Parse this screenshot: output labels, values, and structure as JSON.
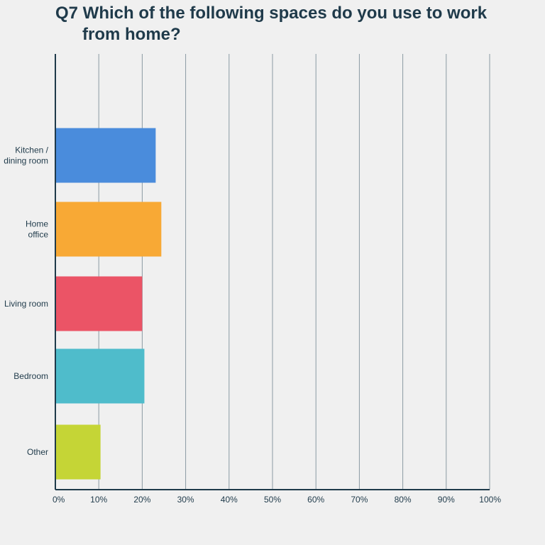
{
  "chart_data": {
    "type": "bar",
    "orientation": "horizontal",
    "title_line1": "Q7 Which of the following spaces do you use to work",
    "title_line2": "from home?",
    "categories": [
      [
        "Kitchen /",
        "dining room"
      ],
      [
        "Home",
        "office"
      ],
      [
        "Living room"
      ],
      [
        "Bedroom"
      ],
      [
        "Other"
      ]
    ],
    "values": [
      23.1,
      24.4,
      20.0,
      20.5,
      10.4
    ],
    "colors": [
      "#4a8cdc",
      "#f8a935",
      "#eb5466",
      "#4fbccb",
      "#c5d536"
    ],
    "xlim": [
      0,
      100
    ],
    "x_ticks": [
      "0%",
      "10%",
      "20%",
      "30%",
      "40%",
      "50%",
      "60%",
      "70%",
      "80%",
      "90%",
      "100%"
    ],
    "grid": true,
    "legend": "none"
  }
}
